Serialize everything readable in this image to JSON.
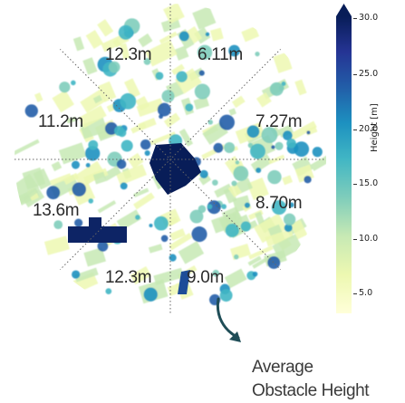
{
  "map": {
    "segment_labels": [
      "12.3m",
      "6.11m",
      "7.27m",
      "8.70m",
      "9.0m",
      "12.3m",
      "13.6m",
      "11.2m"
    ]
  },
  "colorbar": {
    "label": "Height [m]",
    "ticks": [
      "30.0",
      "25.0",
      "20.0",
      "15.0",
      "10.0",
      "5.0"
    ],
    "colors": [
      "#ffffd9",
      "#edf8b1",
      "#c7e9b4",
      "#7fcdbb",
      "#41b6c4",
      "#1d91c0",
      "#225ea8",
      "#253494",
      "#081d58"
    ]
  },
  "annotation": {
    "line1": "Average",
    "line2": "Obstacle Height",
    "arrow_color": "#1f4d57"
  }
}
